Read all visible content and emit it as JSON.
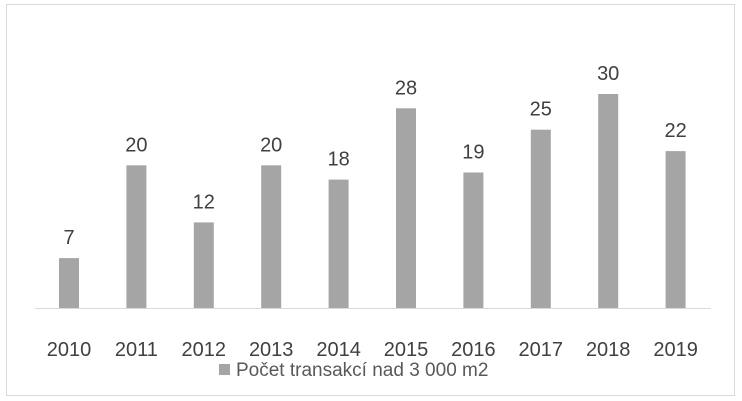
{
  "chart_data": {
    "type": "bar",
    "title": "",
    "xlabel": "",
    "ylabel": "",
    "categories": [
      "2010",
      "2011",
      "2012",
      "2013",
      "2014",
      "2015",
      "2016",
      "2017",
      "2018",
      "2019"
    ],
    "series": [
      {
        "name": "Počet transakcí nad 3 000 m2",
        "values": [
          7,
          20,
          12,
          20,
          18,
          28,
          19,
          25,
          30,
          22
        ],
        "color": "#a5a5a5"
      }
    ],
    "ylim": [
      0,
      30
    ],
    "grid": false,
    "data_labels": true,
    "legend": "bottom"
  }
}
